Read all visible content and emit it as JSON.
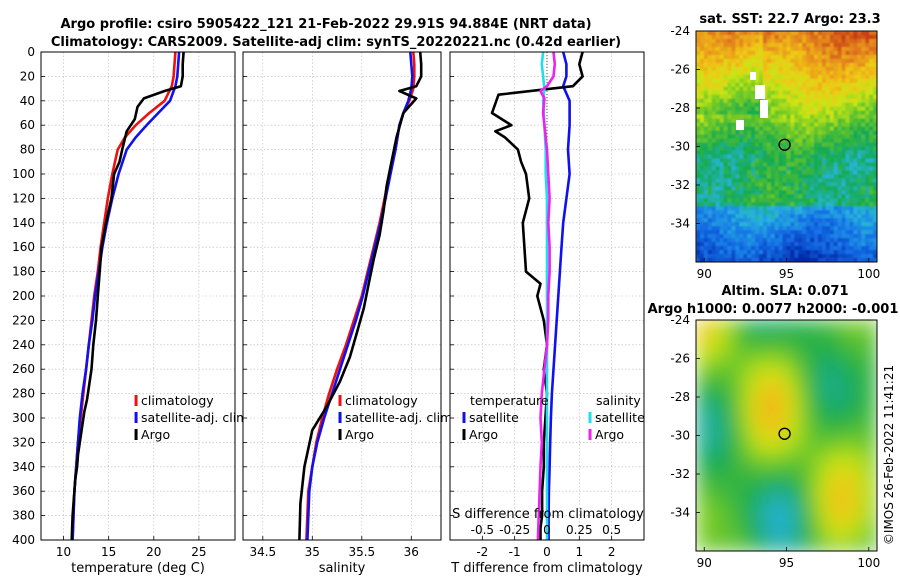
{
  "header": {
    "title_line1": "Argo profile: csiro 5905422_121 21-Feb-2022 29.91S 94.884E (NRT data)",
    "title_line2": "Climatology: CARS2009. Satellite-adj clim: synTS_20220221.nc (0.42d earlier)",
    "sst_title": "sat. SST: 22.7 Argo: 23.3",
    "sla_title1": "Altim. SLA: 0.071",
    "sla_title2": "Argo h1000: 0.0077 h2000: -0.001",
    "copyright": "©IMOS 26-Feb-2022 11:41:21"
  },
  "colors": {
    "climatology": "#ee1111",
    "satellite": "#1111ee",
    "argo": "#000000",
    "sal_satellite": "#22ddee",
    "sal_argo": "#ee22ee",
    "grid": "#b8b8b8"
  },
  "chart_data": [
    {
      "type": "line",
      "id": "temperature",
      "xlabel": "temperature (deg C)",
      "ylabel": "",
      "xlim": [
        7.5,
        29
      ],
      "ylim": [
        0,
        400
      ],
      "y_reversed": true,
      "xticks": [
        10,
        15,
        20,
        25
      ],
      "xtick_labels": [
        "10",
        "15",
        "20",
        "25"
      ],
      "yticks": [
        0,
        20,
        40,
        60,
        80,
        100,
        120,
        140,
        160,
        180,
        200,
        220,
        240,
        260,
        280,
        300,
        320,
        340,
        360,
        380,
        400
      ],
      "ytick_labels": [
        "0",
        "20",
        "40",
        "60",
        "80",
        "100",
        "120",
        "140",
        "160",
        "180",
        "200",
        "220",
        "240",
        "260",
        "280",
        "300",
        "320",
        "340",
        "360",
        "380",
        "400"
      ],
      "legend": [
        "climatology",
        "satellite-adj. clim",
        "Argo"
      ],
      "series": [
        {
          "name": "climatology",
          "color": "red",
          "x": [
            22.4,
            22.3,
            22.2,
            22.0,
            21.2,
            19.5,
            18.0,
            16.8,
            16.0,
            15.4,
            14.9,
            14.5,
            14.1,
            13.8,
            13.4,
            13.1,
            12.8,
            12.5,
            12.2,
            11.9,
            11.6,
            11.4,
            11.2,
            11.0
          ],
          "y": [
            0,
            10,
            20,
            28,
            40,
            50,
            60,
            70,
            80,
            100,
            120,
            140,
            160,
            180,
            200,
            220,
            240,
            260,
            280,
            300,
            320,
            340,
            360,
            400
          ]
        },
        {
          "name": "satellite-adj. clim",
          "color": "blue",
          "x": [
            22.8,
            22.7,
            22.6,
            22.4,
            21.8,
            20.5,
            19.2,
            18.0,
            17.0,
            16.1,
            15.4,
            14.8,
            14.3,
            13.9,
            13.5,
            13.2,
            12.8,
            12.5,
            12.1,
            11.8,
            11.6,
            11.4,
            11.2,
            11.0
          ],
          "y": [
            0,
            10,
            20,
            28,
            40,
            50,
            60,
            70,
            80,
            100,
            120,
            140,
            160,
            180,
            200,
            220,
            240,
            260,
            280,
            300,
            320,
            340,
            360,
            400
          ]
        },
        {
          "name": "Argo",
          "color": "black",
          "x": [
            23.3,
            23.2,
            23.2,
            23.0,
            21.2,
            18.9,
            18.2,
            17.9,
            17.0,
            16.5,
            16.2,
            15.6,
            15.3,
            14.7,
            14.2,
            14.0,
            13.8,
            13.6,
            13.3,
            13.1,
            12.8,
            12.6,
            12.3,
            12.0,
            11.8,
            11.6,
            11.5,
            11.3,
            11.2,
            11.1,
            11.0,
            10.9
          ],
          "y": [
            0,
            10,
            20,
            28,
            32,
            38,
            45,
            55,
            65,
            80,
            90,
            100,
            120,
            140,
            160,
            180,
            200,
            220,
            240,
            260,
            275,
            285,
            295,
            310,
            320,
            330,
            340,
            350,
            360,
            370,
            380,
            400
          ]
        }
      ]
    },
    {
      "type": "line",
      "id": "salinity",
      "xlabel": "salinity",
      "ylabel": "",
      "xlim": [
        34.3,
        36.3
      ],
      "ylim": [
        0,
        400
      ],
      "y_reversed": true,
      "xticks": [
        34.5,
        35,
        35.5,
        36
      ],
      "xtick_labels": [
        "34.5",
        "35",
        "35.5",
        "36"
      ],
      "yticks": [
        0,
        20,
        40,
        60,
        80,
        100,
        120,
        140,
        160,
        180,
        200,
        220,
        240,
        260,
        280,
        300,
        320,
        340,
        360,
        380,
        400
      ],
      "legend": [
        "climatology",
        "satellite-adj. clim",
        "Argo"
      ],
      "series": [
        {
          "name": "climatology",
          "color": "red",
          "x": [
            36.02,
            36.03,
            36.03,
            36.02,
            35.98,
            35.92,
            35.88,
            35.84,
            35.78,
            35.73,
            35.68,
            35.62,
            35.56,
            35.5,
            35.42,
            35.34,
            35.25,
            35.17,
            35.1,
            35.04,
            35.0,
            34.96,
            34.94
          ],
          "y": [
            0,
            10,
            20,
            30,
            40,
            50,
            60,
            80,
            100,
            120,
            140,
            160,
            180,
            200,
            220,
            240,
            260,
            280,
            300,
            320,
            340,
            360,
            400
          ]
        },
        {
          "name": "satellite-adj. clim",
          "color": "blue",
          "x": [
            35.99,
            36.0,
            36.01,
            36.0,
            35.97,
            35.92,
            35.88,
            35.84,
            35.79,
            35.74,
            35.69,
            35.63,
            35.57,
            35.51,
            35.44,
            35.36,
            35.28,
            35.2,
            35.12,
            35.05,
            35.0,
            34.97,
            34.95
          ],
          "y": [
            0,
            10,
            20,
            30,
            40,
            50,
            60,
            80,
            100,
            120,
            140,
            160,
            180,
            200,
            220,
            240,
            260,
            280,
            300,
            320,
            340,
            360,
            400
          ]
        },
        {
          "name": "Argo",
          "color": "black",
          "x": [
            36.09,
            36.1,
            36.1,
            36.05,
            35.88,
            36.05,
            35.92,
            35.85,
            35.8,
            35.75,
            35.72,
            35.68,
            35.62,
            35.57,
            35.52,
            35.45,
            35.38,
            35.28,
            35.15,
            35.0,
            34.92,
            34.88,
            34.87
          ],
          "y": [
            0,
            10,
            20,
            28,
            32,
            38,
            50,
            70,
            90,
            110,
            130,
            150,
            170,
            190,
            210,
            230,
            250,
            270,
            290,
            310,
            340,
            370,
            400
          ]
        }
      ]
    },
    {
      "type": "line",
      "id": "differences",
      "xlabel": "T difference from climatology",
      "x2label": "S difference from climatology",
      "xlim": [
        -3,
        3
      ],
      "ylim": [
        0,
        400
      ],
      "y_reversed": true,
      "xticks": [
        -2,
        -1,
        0,
        1,
        2
      ],
      "xtick_labels": [
        "-2",
        "-1",
        "0",
        "1",
        "2"
      ],
      "x2ticks": [
        -0.5,
        -0.25,
        0,
        0.25,
        0.5
      ],
      "x2tick_labels": [
        "-0.5",
        "-0.25",
        "0",
        "0.25",
        "0.5"
      ],
      "x2lim": [
        -0.75,
        0.75
      ],
      "yticks": [
        0,
        20,
        40,
        60,
        80,
        100,
        120,
        140,
        160,
        180,
        200,
        220,
        240,
        260,
        280,
        300,
        320,
        340,
        360,
        380,
        400
      ],
      "legend_temperature_title": "temperature",
      "legend_salinity_title": "salinity",
      "legend_temperature": [
        "satellite",
        "Argo"
      ],
      "legend_salinity": [
        "satellite",
        "Argo"
      ],
      "series": [
        {
          "name": "T satellite",
          "color": "blue",
          "axis": "T",
          "x": [
            0.5,
            0.6,
            0.6,
            0.5,
            0.7,
            0.7,
            0.65,
            0.7,
            0.6,
            0.5,
            0.45,
            0.4,
            0.35,
            0.3,
            0.25,
            0.2,
            0.15,
            0.12,
            0.1,
            0.08,
            0.06,
            0.05,
            0.05,
            0.05,
            0.05
          ],
          "y": [
            0,
            10,
            20,
            28,
            40,
            60,
            80,
            100,
            120,
            140,
            160,
            180,
            200,
            220,
            240,
            260,
            280,
            300,
            320,
            340,
            360,
            380,
            390,
            395,
            400
          ]
        },
        {
          "name": "T Argo",
          "color": "black",
          "axis": "T",
          "x": [
            1.1,
            1.0,
            1.1,
            0.8,
            -1.5,
            -1.7,
            -1.1,
            -1.6,
            -1.3,
            -0.9,
            -0.8,
            -0.65,
            -0.55,
            -0.75,
            -0.7,
            -0.65,
            -0.2,
            -0.3,
            -0.1,
            0.0,
            -0.1,
            0.0,
            -0.05,
            -0.1,
            -0.1,
            -0.15,
            -0.15,
            -0.2,
            -0.2
          ],
          "y": [
            0,
            10,
            20,
            28,
            35,
            50,
            60,
            65,
            70,
            80,
            90,
            100,
            120,
            140,
            160,
            180,
            190,
            200,
            220,
            240,
            260,
            280,
            300,
            320,
            340,
            360,
            380,
            390,
            400
          ]
        },
        {
          "name": "S satellite",
          "color": "cyan",
          "axis": "S",
          "x": [
            -0.03,
            -0.04,
            -0.03,
            -0.02,
            -0.03,
            -0.02,
            -0.01,
            -0.01,
            0.0,
            0.0,
            0.0,
            0.0,
            0.0,
            0.0,
            0.0,
            0.0,
            0.0,
            0.0,
            0.0,
            0.0,
            0.0,
            0.0
          ],
          "y": [
            0,
            10,
            20,
            30,
            40,
            60,
            80,
            100,
            120,
            140,
            160,
            180,
            200,
            220,
            240,
            260,
            280,
            300,
            320,
            340,
            360,
            400
          ]
        },
        {
          "name": "S Argo",
          "color": "magenta",
          "axis": "S",
          "x": [
            0.05,
            0.06,
            0.05,
            0.0,
            -0.05,
            -0.02,
            -0.03,
            0.0,
            0.01,
            0.02,
            0.01,
            0.02,
            0.02,
            0.01,
            0.01,
            0.0,
            -0.02,
            -0.04,
            -0.05,
            -0.04,
            -0.05,
            -0.06,
            -0.07
          ],
          "y": [
            0,
            10,
            20,
            28,
            32,
            38,
            50,
            80,
            100,
            120,
            140,
            160,
            180,
            200,
            220,
            240,
            260,
            280,
            300,
            320,
            340,
            370,
            400
          ]
        }
      ]
    },
    {
      "type": "heatmap",
      "id": "sst_map",
      "title": "sat. SST: 22.7 Argo: 23.3",
      "xlim": [
        89.5,
        100.5
      ],
      "ylim": [
        -36,
        -24
      ],
      "xticks": [
        90,
        95,
        100
      ],
      "xtick_labels": [
        "90",
        "95",
        "100"
      ],
      "yticks": [
        -24,
        -26,
        -28,
        -30,
        -32,
        -34
      ],
      "ytick_labels": [
        "-24",
        "-26",
        "-28",
        "-30",
        "-32",
        "-34"
      ],
      "marker": {
        "lon": 94.884,
        "lat": -29.91
      }
    },
    {
      "type": "heatmap",
      "id": "sla_map",
      "title": "Altim. SLA: 0.071",
      "xlim": [
        89.5,
        100.5
      ],
      "ylim": [
        -36,
        -24
      ],
      "xticks": [
        90,
        95,
        100
      ],
      "xtick_labels": [
        "90",
        "95",
        "100"
      ],
      "yticks": [
        -24,
        -26,
        -28,
        -30,
        -32,
        -34
      ],
      "ytick_labels": [
        "-24",
        "-26",
        "-28",
        "-30",
        "-32",
        "-34"
      ],
      "marker": {
        "lon": 94.884,
        "lat": -29.91
      }
    }
  ]
}
